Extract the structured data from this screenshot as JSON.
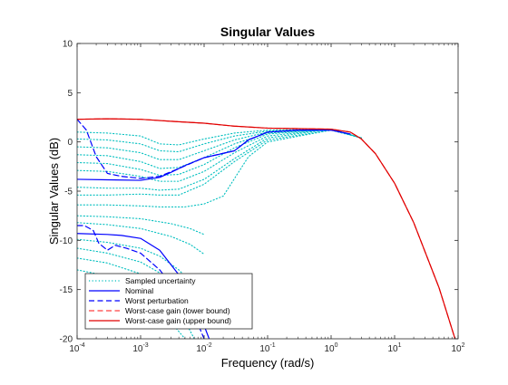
{
  "chart_data": {
    "type": "line",
    "title": "Singular Values",
    "xlabel": "Frequency (rad/s)",
    "ylabel": "Singular Values (dB)",
    "xscale": "log",
    "xlim": [
      0.0001,
      100
    ],
    "ylim": [
      -20,
      10
    ],
    "grid": false,
    "legend_position": "bottom-left",
    "xticks": [
      {
        "base": "10",
        "exp": "-4"
      },
      {
        "base": "10",
        "exp": "-3"
      },
      {
        "base": "10",
        "exp": "-2"
      },
      {
        "base": "10",
        "exp": "-1"
      },
      {
        "base": "10",
        "exp": "0"
      },
      {
        "base": "10",
        "exp": "1"
      },
      {
        "base": "10",
        "exp": "2"
      }
    ],
    "yticks": [
      "-20",
      "-15",
      "-10",
      "-5",
      "0",
      "5",
      "10"
    ],
    "series": [
      {
        "name": "Sampled uncertainty",
        "color": "#00bfbf",
        "style": "dotted",
        "lines": [
          [
            [
              0.0001,
              1.0
            ],
            [
              0.0003,
              0.9
            ],
            [
              0.001,
              0.6
            ],
            [
              0.002,
              -0.2
            ],
            [
              0.004,
              -0.3
            ],
            [
              0.01,
              0.3
            ],
            [
              0.03,
              0.9
            ],
            [
              0.1,
              1.2
            ],
            [
              1,
              1.3
            ],
            [
              3,
              0.4
            ]
          ],
          [
            [
              0.0001,
              0.3
            ],
            [
              0.0003,
              0.2
            ],
            [
              0.001,
              -0.2
            ],
            [
              0.002,
              -0.9
            ],
            [
              0.004,
              -1.0
            ],
            [
              0.01,
              -0.2
            ],
            [
              0.03,
              0.6
            ],
            [
              0.1,
              1.1
            ],
            [
              1,
              1.3
            ],
            [
              3,
              0.4
            ]
          ],
          [
            [
              0.0001,
              -0.5
            ],
            [
              0.0003,
              -0.6
            ],
            [
              0.001,
              -1.1
            ],
            [
              0.002,
              -1.8
            ],
            [
              0.004,
              -1.8
            ],
            [
              0.01,
              -0.9
            ],
            [
              0.03,
              0.2
            ],
            [
              0.1,
              1.0
            ],
            [
              1,
              1.3
            ],
            [
              3,
              0.4
            ]
          ],
          [
            [
              0.0001,
              -1.3
            ],
            [
              0.0003,
              -1.4
            ],
            [
              0.001,
              -2.0
            ],
            [
              0.002,
              -2.7
            ],
            [
              0.004,
              -2.6
            ],
            [
              0.01,
              -1.6
            ],
            [
              0.03,
              -0.2
            ],
            [
              0.1,
              0.9
            ],
            [
              1,
              1.3
            ],
            [
              3,
              0.4
            ]
          ],
          [
            [
              0.0001,
              -2.1
            ],
            [
              0.0003,
              -2.2
            ],
            [
              0.001,
              -2.8
            ],
            [
              0.002,
              -3.4
            ],
            [
              0.004,
              -3.3
            ],
            [
              0.01,
              -2.3
            ],
            [
              0.03,
              -0.6
            ],
            [
              0.1,
              0.8
            ],
            [
              1,
              1.3
            ],
            [
              3,
              0.4
            ]
          ],
          [
            [
              0.0001,
              -2.9
            ],
            [
              0.0003,
              -3.0
            ],
            [
              0.001,
              -3.5
            ],
            [
              0.002,
              -4.0
            ],
            [
              0.004,
              -4.0
            ],
            [
              0.01,
              -3.0
            ],
            [
              0.03,
              -1.1
            ],
            [
              0.1,
              0.6
            ],
            [
              1,
              1.3
            ],
            [
              3,
              0.4
            ]
          ],
          [
            [
              0.0001,
              -4.6
            ],
            [
              0.0003,
              -4.7
            ],
            [
              0.001,
              -4.7
            ],
            [
              0.002,
              -4.9
            ],
            [
              0.004,
              -4.8
            ],
            [
              0.01,
              -3.8
            ],
            [
              0.03,
              -1.7
            ],
            [
              0.1,
              0.4
            ],
            [
              1,
              1.3
            ],
            [
              3,
              0.4
            ]
          ],
          [
            [
              0.0001,
              -5.4
            ],
            [
              0.0003,
              -5.4
            ],
            [
              0.001,
              -5.3
            ],
            [
              0.002,
              -5.4
            ],
            [
              0.004,
              -5.4
            ],
            [
              0.01,
              -4.3
            ],
            [
              0.03,
              -2.0
            ],
            [
              0.1,
              0.2
            ],
            [
              1,
              1.2
            ],
            [
              3,
              0.4
            ]
          ],
          [
            [
              0.0001,
              -6.4
            ],
            [
              0.0003,
              -6.4
            ],
            [
              0.001,
              -6.5
            ],
            [
              0.002,
              -6.6
            ],
            [
              0.005,
              -6.6
            ],
            [
              0.01,
              -6.3
            ],
            [
              0.02,
              -5.5
            ],
            [
              0.05,
              -1.5
            ],
            [
              0.1,
              0.0
            ],
            [
              1,
              1.2
            ],
            [
              3,
              0.4
            ]
          ],
          [
            [
              0.0001,
              -7.5
            ],
            [
              0.0003,
              -7.6
            ],
            [
              0.001,
              -7.8
            ],
            [
              0.003,
              -8.3
            ],
            [
              0.006,
              -8.8
            ],
            [
              0.01,
              -9.4
            ]
          ],
          [
            [
              0.0001,
              -8.2
            ],
            [
              0.0003,
              -8.4
            ],
            [
              0.001,
              -8.8
            ],
            [
              0.003,
              -9.6
            ],
            [
              0.006,
              -10.4
            ],
            [
              0.01,
              -11.4
            ]
          ],
          [
            [
              0.0001,
              -9.9
            ],
            [
              0.0003,
              -10.2
            ],
            [
              0.001,
              -10.8
            ],
            [
              0.002,
              -11.6
            ],
            [
              0.004,
              -13.0
            ],
            [
              0.008,
              -15.0
            ],
            [
              0.015,
              -18.0
            ]
          ],
          [
            [
              0.0001,
              -10.8
            ],
            [
              0.0003,
              -11.3
            ],
            [
              0.001,
              -12.2
            ],
            [
              0.002,
              -13.3
            ],
            [
              0.004,
              -15.0
            ],
            [
              0.008,
              -17.8
            ]
          ],
          [
            [
              0.0001,
              -11.8
            ],
            [
              0.0003,
              -12.3
            ],
            [
              0.001,
              -13.4
            ],
            [
              0.002,
              -14.8
            ],
            [
              0.004,
              -17.0
            ],
            [
              0.007,
              -20.0
            ]
          ],
          [
            [
              0.0001,
              -13.0
            ],
            [
              0.0003,
              -13.6
            ],
            [
              0.001,
              -14.8
            ],
            [
              0.002,
              -16.5
            ],
            [
              0.003,
              -18.3
            ],
            [
              0.005,
              -20.0
            ]
          ]
        ]
      },
      {
        "name": "Nominal",
        "color": "#0000ff",
        "style": "solid",
        "lines": [
          [
            [
              0.0001,
              -3.8
            ],
            [
              0.0003,
              -3.85
            ],
            [
              0.001,
              -3.9
            ],
            [
              0.002,
              -3.6
            ],
            [
              0.003,
              -3.1
            ],
            [
              0.005,
              -2.4
            ],
            [
              0.01,
              -1.6
            ],
            [
              0.03,
              -0.9
            ],
            [
              0.05,
              0.2
            ],
            [
              0.1,
              1.0
            ],
            [
              0.3,
              1.2
            ],
            [
              1,
              1.2
            ],
            [
              2,
              0.8
            ]
          ],
          [
            [
              0.0001,
              -9.3
            ],
            [
              0.0003,
              -9.4
            ],
            [
              0.0005,
              -9.5
            ],
            [
              0.001,
              -9.8
            ],
            [
              0.002,
              -11.0
            ],
            [
              0.004,
              -13.5
            ],
            [
              0.008,
              -17.0
            ],
            [
              0.012,
              -20.0
            ]
          ]
        ]
      },
      {
        "name": "Worst perturbation",
        "color": "#0000ff",
        "style": "dashed",
        "lines": [
          [
            [
              0.0001,
              2.3
            ],
            [
              0.00014,
              1.2
            ],
            [
              0.0002,
              -1.5
            ],
            [
              0.0003,
              -3.2
            ],
            [
              0.0005,
              -3.5
            ],
            [
              0.001,
              -3.7
            ],
            [
              0.002,
              -3.5
            ],
            [
              0.004,
              -2.7
            ],
            [
              0.01,
              -1.6
            ],
            [
              0.03,
              -0.9
            ],
            [
              0.05,
              0.2
            ],
            [
              0.1,
              1.0
            ],
            [
              0.3,
              1.2
            ],
            [
              1,
              1.2
            ],
            [
              2,
              0.8
            ]
          ],
          [
            [
              0.0001,
              -8.5
            ],
            [
              0.00013,
              -8.5
            ],
            [
              0.00018,
              -9.0
            ],
            [
              0.00022,
              -10.3
            ],
            [
              0.0003,
              -11.0
            ],
            [
              0.0004,
              -10.5
            ],
            [
              0.0006,
              -10.8
            ],
            [
              0.001,
              -11.3
            ],
            [
              0.002,
              -13.0
            ],
            [
              0.004,
              -15.5
            ],
            [
              0.008,
              -18.5
            ],
            [
              0.01,
              -20.0
            ]
          ]
        ]
      },
      {
        "name": "Worst-case gain (lower bound)",
        "color": "#ff4040",
        "style": "dashed",
        "lines": [
          [
            [
              0.0001,
              2.3
            ],
            [
              0.0003,
              2.35
            ],
            [
              0.001,
              2.3
            ],
            [
              0.003,
              2.1
            ],
            [
              0.01,
              1.9
            ],
            [
              0.03,
              1.6
            ],
            [
              0.1,
              1.4
            ],
            [
              0.3,
              1.35
            ],
            [
              1,
              1.3
            ],
            [
              2,
              1.0
            ],
            [
              3,
              0.3
            ],
            [
              5,
              -1.2
            ],
            [
              10,
              -4.2
            ],
            [
              20,
              -8.2
            ],
            [
              50,
              -14.8
            ],
            [
              100,
              -21.0
            ]
          ]
        ]
      },
      {
        "name": "Worst-case gain (upper bound)",
        "color": "#e00000",
        "style": "solid",
        "lines": [
          [
            [
              0.0001,
              2.3
            ],
            [
              0.0003,
              2.35
            ],
            [
              0.001,
              2.3
            ],
            [
              0.003,
              2.1
            ],
            [
              0.01,
              1.9
            ],
            [
              0.03,
              1.6
            ],
            [
              0.1,
              1.4
            ],
            [
              0.3,
              1.35
            ],
            [
              1,
              1.3
            ],
            [
              2,
              1.0
            ],
            [
              3,
              0.3
            ],
            [
              5,
              -1.2
            ],
            [
              10,
              -4.2
            ],
            [
              20,
              -8.2
            ],
            [
              50,
              -14.8
            ],
            [
              100,
              -21.0
            ]
          ]
        ]
      }
    ]
  }
}
